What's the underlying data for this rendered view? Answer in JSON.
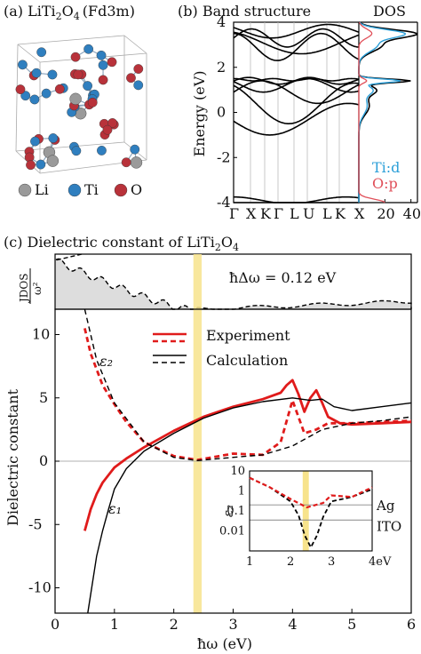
{
  "panel_a": {
    "label": "(a) LiTi",
    "sub2": "2",
    "o": "O",
    "sub4": "4",
    "spacegroup": "(Fd3m)",
    "legend": [
      {
        "name": "Li",
        "color": "#9a9a9a"
      },
      {
        "name": "Ti",
        "color": "#2f7fbf"
      },
      {
        "name": "O",
        "color": "#b8323a"
      }
    ]
  },
  "panel_b": {
    "label": "(b) Band structure",
    "dos_label": "DOS",
    "ylabel": "Energy (eV)",
    "kpoints": [
      "Γ",
      "X",
      "K",
      "Γ",
      "L",
      "U",
      "L",
      "K",
      "X"
    ],
    "dos_ticks": [
      "20",
      "40"
    ],
    "dos_legend": [
      {
        "name": "Ti:d",
        "color": "#2b9fd8"
      },
      {
        "name": "O:p",
        "color": "#e0505a"
      }
    ]
  },
  "panel_c": {
    "label": "(c) Dielectric constant of LiTi",
    "label_sub2": "2",
    "label_o": "O",
    "label_sub4": "4",
    "annotation": "ħΔω = 0.12 eV",
    "jdos_label": "JDOS",
    "jdos_den": "ω²",
    "legend": [
      {
        "name": "Experiment",
        "color": "#e01b1b"
      },
      {
        "name": "Calculation",
        "color": "#000000"
      }
    ],
    "eps2": "ε₂",
    "eps1": "ε₁",
    "inset": {
      "ylabel": "ε₂",
      "yticks": [
        "10",
        "1",
        "0.1",
        "0.01"
      ],
      "xticks": [
        "1",
        "2",
        "3",
        "4eV"
      ],
      "refs": [
        "Ag",
        "ITO"
      ]
    }
  },
  "chart_data": [
    {
      "type": "line",
      "title": "Band structure",
      "ylabel": "Energy (eV)",
      "ylim": [
        -4,
        4
      ],
      "yticks": [
        -4,
        -2,
        0,
        2,
        4
      ],
      "x_tick_labels": [
        "Γ",
        "X",
        "K",
        "Γ",
        "L",
        "U",
        "L",
        "K",
        "X"
      ]
    },
    {
      "type": "line",
      "title": "DOS",
      "xticks": [
        20,
        40
      ],
      "series": [
        {
          "name": "Ti:d"
        },
        {
          "name": "O:p"
        }
      ]
    },
    {
      "type": "line",
      "title": "Dielectric constant of LiTi2O4",
      "xlabel": "ħω (eV)",
      "ylabel": "Dielectric constant",
      "xlim": [
        0,
        6
      ],
      "ylim": [
        -12,
        12
      ],
      "xticks": [
        0,
        1,
        2,
        3,
        4,
        5,
        6
      ],
      "yticks": [
        -10,
        -5,
        0,
        5,
        10
      ],
      "highlight_x": 2.4,
      "series": [
        {
          "name": "Experiment",
          "component": "eps1",
          "x": [
            0.5,
            0.6,
            0.7,
            0.8,
            1.0,
            1.2,
            1.5,
            2.0,
            2.5,
            3.0,
            3.5,
            3.8,
            3.9,
            4.0,
            4.1,
            4.2,
            4.3,
            4.4,
            4.5,
            4.6,
            4.8,
            5.0,
            5.5,
            6.0
          ],
          "y": [
            -5.5,
            -3.8,
            -2.6,
            -1.7,
            -0.5,
            0.2,
            1.1,
            2.4,
            3.5,
            4.3,
            4.9,
            5.4,
            6.0,
            6.4,
            5.3,
            3.9,
            5.0,
            5.6,
            4.6,
            3.5,
            3.0,
            2.9,
            3.0,
            3.1
          ]
        },
        {
          "name": "Experiment",
          "component": "eps2",
          "x": [
            0.5,
            0.6,
            0.8,
            1.0,
            1.2,
            1.5,
            2.0,
            2.4,
            3.0,
            3.5,
            3.8,
            4.0,
            4.2,
            4.4,
            4.6,
            5.0,
            5.5,
            6.0
          ],
          "y": [
            10.5,
            8.5,
            6.0,
            4.5,
            3.1,
            1.5,
            0.4,
            0.1,
            0.6,
            0.5,
            1.5,
            4.8,
            2.2,
            2.5,
            3.0,
            3.0,
            3.1,
            3.2
          ]
        },
        {
          "name": "Calculation",
          "component": "eps1",
          "x": [
            0.55,
            0.7,
            0.8,
            0.9,
            1.0,
            1.2,
            1.5,
            2.0,
            2.5,
            3.0,
            3.5,
            4.0,
            4.3,
            4.5,
            4.7,
            5.0,
            5.5,
            6.0
          ],
          "y": [
            -12,
            -7.5,
            -5.5,
            -3.8,
            -2.2,
            -0.6,
            0.8,
            2.2,
            3.4,
            4.2,
            4.7,
            5.0,
            4.8,
            4.9,
            4.3,
            4.0,
            4.3,
            4.6
          ]
        },
        {
          "name": "Calculation",
          "component": "eps2",
          "x": [
            0.5,
            0.7,
            1.0,
            1.5,
            2.0,
            2.4,
            3.0,
            3.5,
            4.0,
            4.5,
            5.0,
            5.5,
            6.0
          ],
          "y": [
            12,
            8,
            4.6,
            1.5,
            0.3,
            0.05,
            0.3,
            0.5,
            1.2,
            2.5,
            3.0,
            3.2,
            3.5
          ]
        }
      ]
    }
  ]
}
